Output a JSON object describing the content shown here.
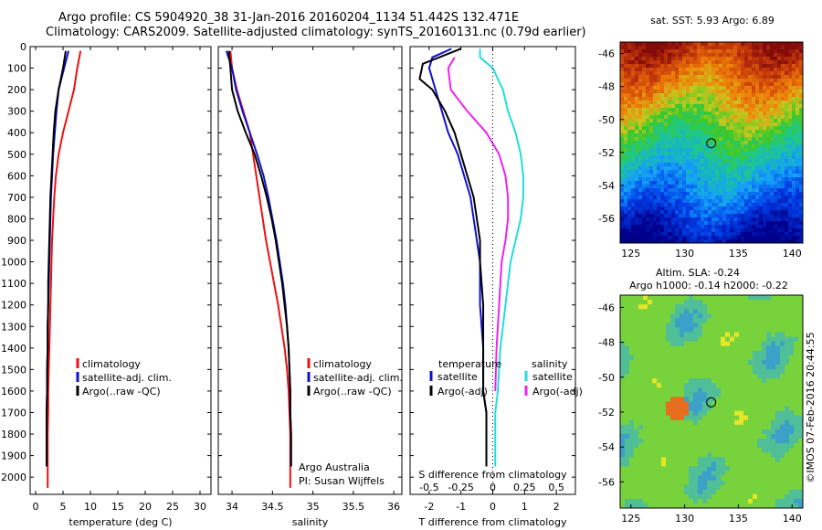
{
  "header": {
    "line1": "Argo profile: CS 5904920_38 31-Jan-2016 20160204_1134 51.442S 132.471E",
    "line2": "Climatology: CARS2009. Satellite-adjusted climatology: synTS_20160131.nc (0.79d earlier)"
  },
  "colors": {
    "clim": "#ee1111",
    "sat": "#1111cc",
    "argo": "#000000",
    "sat_sdiff": "#22dddd",
    "argo_sdiff": "#ee22ee"
  },
  "depth_ticks": [
    "0",
    "100",
    "200",
    "300",
    "400",
    "500",
    "600",
    "700",
    "800",
    "900",
    "1000",
    "1100",
    "1200",
    "1300",
    "1400",
    "1500",
    "1600",
    "1700",
    "1800",
    "1900",
    "2000"
  ],
  "chart_data": [
    {
      "type": "line",
      "xlabel": "temperature (deg C)",
      "xticks": [
        "0",
        "5",
        "10",
        "15",
        "20",
        "25",
        "30"
      ],
      "xlim": [
        -1,
        32
      ],
      "ylim": [
        2080,
        0
      ],
      "series": [
        {
          "name": "climatology",
          "x": [
            8.2,
            7.6,
            7.0,
            6.0,
            5.0,
            4.2,
            3.7,
            3.4,
            3.2,
            3.0,
            2.9,
            2.8,
            2.7,
            2.6,
            2.5,
            2.4,
            2.3,
            2.3,
            2.2,
            2.2,
            2.2
          ],
          "y": [
            20,
            100,
            200,
            300,
            400,
            500,
            600,
            700,
            800,
            900,
            1000,
            1100,
            1200,
            1300,
            1400,
            1500,
            1600,
            1700,
            1800,
            1900,
            2050
          ]
        },
        {
          "name": "satellite-adj. clim.",
          "x": [
            6.0,
            5.2,
            4.2,
            3.8,
            3.5,
            3.2,
            3.0,
            2.8,
            2.7,
            2.6,
            2.5,
            2.4,
            2.3,
            2.2,
            2.2,
            2.1,
            2.1,
            2.0,
            2.0,
            2.0
          ],
          "y": [
            20,
            100,
            200,
            300,
            400,
            500,
            600,
            700,
            800,
            900,
            1000,
            1100,
            1200,
            1300,
            1400,
            1500,
            1600,
            1700,
            1800,
            1950
          ]
        },
        {
          "name": "Argo(..raw -QC)",
          "x": [
            5.5,
            5.0,
            4.2,
            3.6,
            3.3,
            3.1,
            2.9,
            2.7,
            2.6,
            2.5,
            2.4,
            2.3,
            2.3,
            2.2,
            2.2,
            2.1,
            2.1,
            2.0,
            2.0,
            2.0
          ],
          "y": [
            20,
            100,
            200,
            300,
            400,
            500,
            600,
            700,
            800,
            900,
            1000,
            1100,
            1200,
            1300,
            1400,
            1500,
            1600,
            1700,
            1800,
            1950
          ]
        }
      ],
      "legend": [
        "climatology",
        "satellite-adj. clim.",
        "Argo(..raw -QC)"
      ]
    },
    {
      "type": "line",
      "xlabel": "salinity",
      "xticks": [
        "34",
        "34.5",
        "35",
        "35.5",
        "36"
      ],
      "xlim": [
        33.83,
        36.1
      ],
      "ylim": [
        2080,
        0
      ],
      "series": [
        {
          "name": "climatology",
          "x": [
            33.98,
            34.0,
            34.06,
            34.14,
            34.22,
            34.26,
            34.3,
            34.34,
            34.38,
            34.42,
            34.47,
            34.52,
            34.57,
            34.61,
            34.65,
            34.68,
            34.7,
            34.71,
            34.72,
            34.72,
            34.72
          ],
          "y": [
            20,
            100,
            200,
            300,
            400,
            500,
            600,
            700,
            800,
            900,
            1000,
            1100,
            1200,
            1300,
            1400,
            1500,
            1600,
            1700,
            1800,
            1900,
            2050
          ]
        },
        {
          "name": "satellite-adj. clim.",
          "x": [
            33.93,
            34.0,
            34.05,
            34.13,
            34.22,
            34.31,
            34.39,
            34.45,
            34.5,
            34.55,
            34.59,
            34.63,
            34.66,
            34.68,
            34.7,
            34.71,
            34.72,
            34.72,
            34.73,
            34.73
          ],
          "y": [
            20,
            100,
            200,
            300,
            400,
            500,
            600,
            700,
            800,
            900,
            1000,
            1100,
            1200,
            1300,
            1400,
            1500,
            1600,
            1700,
            1800,
            1950
          ]
        },
        {
          "name": "Argo(..raw -QC)",
          "x": [
            33.96,
            33.98,
            34.0,
            34.07,
            34.17,
            34.28,
            34.36,
            34.43,
            34.49,
            34.54,
            34.58,
            34.62,
            34.65,
            34.68,
            34.7,
            34.71,
            34.72,
            34.72,
            34.73,
            34.73
          ],
          "y": [
            20,
            100,
            200,
            300,
            400,
            500,
            600,
            700,
            800,
            900,
            1000,
            1100,
            1200,
            1300,
            1400,
            1500,
            1600,
            1700,
            1800,
            1950
          ]
        }
      ],
      "legend": [
        "climatology",
        "satellite-adj. clim.",
        "Argo(..raw -QC)"
      ],
      "annotations": [
        "Argo Australia",
        "PI: Susan Wijffels"
      ]
    },
    {
      "type": "line",
      "xlabel": "T difference from climatology",
      "xlabel_top": "S difference from climatology",
      "xticks": [
        "-2",
        "-1",
        "0",
        "1",
        "2"
      ],
      "xticks_top": [
        "-0.5",
        "-0.25",
        "0",
        "0.25",
        "0.5"
      ],
      "xlim": [
        -2.6,
        2.6
      ],
      "ylim": [
        2080,
        0
      ],
      "series": [
        {
          "name": "temperature satellite",
          "x": [
            -1.3,
            -1.9,
            -2.0,
            -1.8,
            -1.6,
            -1.4,
            -1.1,
            -0.9,
            -0.7,
            -0.6,
            -0.5,
            -0.4,
            -0.4,
            -0.3,
            -0.3,
            -0.3,
            -0.2,
            -0.2,
            -0.2
          ],
          "y": [
            10,
            50,
            100,
            200,
            300,
            400,
            500,
            600,
            700,
            800,
            900,
            1000,
            1200,
            1400,
            1500,
            1600,
            1700,
            1800,
            1950
          ]
        },
        {
          "name": "temperature Argo(-adj)",
          "x": [
            -1.0,
            -2.2,
            -2.3,
            -1.9,
            -1.5,
            -1.2,
            -1.0,
            -0.8,
            -0.6,
            -0.5,
            -0.4,
            -0.4,
            -0.3,
            -0.3,
            -0.3,
            -0.2,
            -0.2,
            -0.2
          ],
          "y": [
            10,
            80,
            150,
            200,
            300,
            400,
            500,
            600,
            700,
            800,
            900,
            1000,
            1200,
            1400,
            1600,
            1700,
            1800,
            1950
          ]
        },
        {
          "name": "salinity satellite",
          "x": [
            -0.1,
            -0.1,
            0.0,
            0.08,
            0.12,
            0.18,
            0.22,
            0.24,
            0.24,
            0.22,
            0.18,
            0.14,
            0.1,
            0.06,
            0.04,
            0.02,
            0.02,
            0.02
          ],
          "y": [
            10,
            50,
            100,
            200,
            300,
            400,
            500,
            600,
            700,
            800,
            900,
            1000,
            1200,
            1400,
            1600,
            1700,
            1800,
            1950
          ]
        },
        {
          "name": "salinity Argo(-adj)",
          "x": [
            -0.3,
            -0.35,
            -0.33,
            -0.2,
            -0.05,
            0.05,
            0.1,
            0.12,
            0.12,
            0.1,
            0.07,
            0.05,
            0.03,
            0.02
          ],
          "y": [
            50,
            100,
            200,
            300,
            400,
            500,
            600,
            700,
            800,
            900,
            1000,
            1200,
            1400,
            1600
          ]
        }
      ],
      "legend_left_title": "temperature",
      "legend_right_title": "salinity",
      "legend": [
        "satellite",
        "Argo(-adj)",
        "satellite",
        "Argo(-adj)"
      ]
    },
    {
      "type": "heatmap",
      "title": "sat. SST: 5.93 Argo: 6.89",
      "xticks": [
        "125",
        "130",
        "135",
        "140"
      ],
      "yticks": [
        "-46",
        "-48",
        "-50",
        "-52",
        "-54",
        "-56"
      ],
      "xlim": [
        124,
        141
      ],
      "ylim": [
        -57.5,
        -45.3
      ],
      "marker": [
        132.471,
        -51.442
      ]
    },
    {
      "type": "heatmap",
      "title_line1": "Altim. SLA: -0.24",
      "title_line2": "Argo h1000: -0.14 h2000: -0.22",
      "xticks": [
        "125",
        "130",
        "135",
        "140"
      ],
      "yticks": [
        "-46",
        "-48",
        "-50",
        "-52",
        "-54",
        "-56"
      ],
      "xlim": [
        124,
        141
      ],
      "ylim": [
        -57.5,
        -45.3
      ],
      "marker": [
        132.471,
        -51.442
      ]
    }
  ],
  "side_label": "©IMOS 07-Feb-2016 20:44:55"
}
